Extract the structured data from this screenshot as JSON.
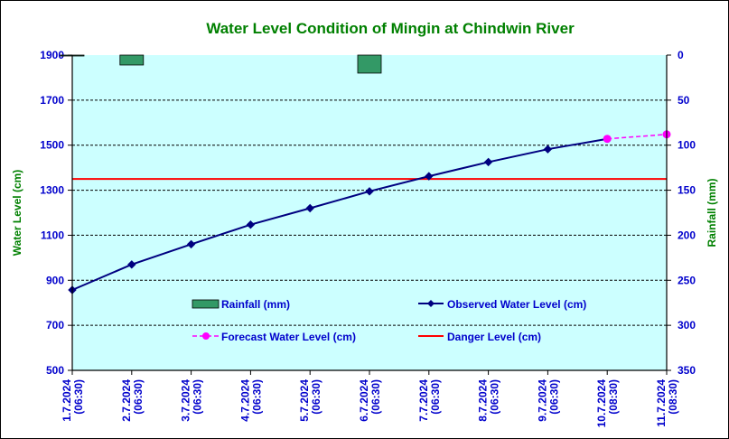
{
  "chart_data": {
    "type": "line",
    "title": "Water Level Condition of Mingin at Chindwin River",
    "ylabel": "Water Level (cm)",
    "y2label": "Rainfall (mm)",
    "ylim": [
      500,
      1900
    ],
    "y2lim": [
      0,
      350
    ],
    "yticks": [
      "500",
      "700",
      "900",
      "1100",
      "1300",
      "1500",
      "1700",
      "1900"
    ],
    "y2ticks": [
      "0",
      "50",
      "100",
      "150",
      "200",
      "250",
      "300",
      "350"
    ],
    "y2_reversed": true,
    "categories": [
      [
        "1.7.2024",
        "(06:30)"
      ],
      [
        "2.7.2024",
        "(06:30)"
      ],
      [
        "3.7.2024",
        "(06:30)"
      ],
      [
        "4.7.2024",
        "(06:30)"
      ],
      [
        "5.7.2024",
        "(06:30)"
      ],
      [
        "6.7.2024",
        "(06:30)"
      ],
      [
        "7.7.2024",
        "(06:30)"
      ],
      [
        "8.7.2024",
        "(06:30)"
      ],
      [
        "9.7.2024",
        "(06:30)"
      ],
      [
        "10.7.2024",
        "(08:30)"
      ],
      [
        "11.7.2024",
        "(08:30)"
      ]
    ],
    "grid": true,
    "legend_position": "lower-center inside plot",
    "series": [
      {
        "name": "Rainfall (mm)",
        "kind": "bar",
        "axis": "right",
        "color": "#339966",
        "values": [
          0.5,
          11,
          0,
          0,
          0,
          20,
          0,
          0,
          0,
          0,
          0
        ]
      },
      {
        "name": "Observed Water Level (cm)",
        "kind": "line",
        "axis": "left",
        "color": "#000080",
        "values": [
          857,
          970,
          1060,
          1147,
          1220,
          1295,
          1362,
          1425,
          1482,
          1528,
          null
        ]
      },
      {
        "name": "Forecast Water Level (cm)",
        "kind": "dashed-line",
        "axis": "left",
        "color": "#ff00ff",
        "values": [
          null,
          null,
          null,
          null,
          null,
          null,
          null,
          null,
          null,
          1528,
          1548
        ]
      },
      {
        "name": "Danger Level (cm)",
        "kind": "constant",
        "axis": "left",
        "color": "#ff0000",
        "value": 1350
      }
    ]
  },
  "colors": {
    "plot_background": "#ccffff",
    "title": "#008000",
    "axis_titles": "#008000",
    "tick_labels": "#0000cc",
    "legend_text": "#0000cc"
  }
}
